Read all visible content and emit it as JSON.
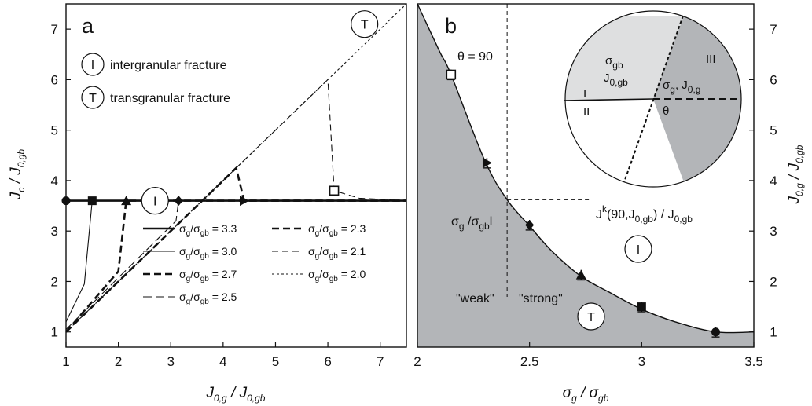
{
  "chart_data": [
    {
      "panel": "a",
      "type": "line",
      "xlabel": {
        "main": "J",
        "sub1": "0,g",
        "mid": " / J",
        "sub2": "0,gb"
      },
      "ylabel": {
        "main": "J",
        "sub1": "c",
        "mid": " / J",
        "sub2": "0,gb"
      },
      "xlim": [
        1,
        7.5
      ],
      "ylim": [
        0.7,
        7.5
      ],
      "xticks": [
        "1",
        "2",
        "3",
        "4",
        "5",
        "6",
        "7"
      ],
      "yticks": [
        "1",
        "2",
        "3",
        "4",
        "5",
        "6",
        "7"
      ],
      "grid": false,
      "regime_keys": [
        {
          "symbol": "I",
          "text": "intergranular fracture"
        },
        {
          "symbol": "T",
          "text": "transgranular fracture"
        }
      ],
      "region_labels": [
        {
          "symbol": "I",
          "x": 2.7,
          "y": 3.6
        },
        {
          "symbol": "T",
          "x": 6.7,
          "y": 7.1
        }
      ],
      "legend_position": "bottom-right",
      "series": [
        {
          "name_main": "σ",
          "name_sub1": "g",
          "name_mid": "/σ",
          "name_sub2": "gb",
          "name_tail": " = 3.3",
          "style": "solid-thick",
          "marker": "circle",
          "points": [
            [
              1.0,
              3.6
            ],
            [
              7.5,
              3.6
            ]
          ],
          "marker_at": [
            1.0,
            3.6
          ]
        },
        {
          "name_main": "σ",
          "name_sub1": "g",
          "name_mid": "/σ",
          "name_sub2": "gb",
          "name_tail": " = 3.0",
          "style": "solid-thin",
          "marker": "square",
          "points": [
            [
              1.0,
              1.2
            ],
            [
              1.35,
              1.95
            ],
            [
              1.5,
              3.6
            ],
            [
              7.5,
              3.6
            ]
          ],
          "marker_at": [
            1.5,
            3.6
          ]
        },
        {
          "name_main": "σ",
          "name_sub1": "g",
          "name_mid": "/σ",
          "name_sub2": "gb",
          "name_tail": " = 2.7",
          "style": "dash-thick",
          "marker": "triangle",
          "points": [
            [
              1.0,
              1.0
            ],
            [
              2.0,
              2.2
            ],
            [
              2.15,
              3.6
            ],
            [
              7.5,
              3.6
            ]
          ],
          "marker_at": [
            2.15,
            3.6
          ]
        },
        {
          "name_main": "σ",
          "name_sub1": "g",
          "name_mid": "/σ",
          "name_sub2": "gb",
          "name_tail": " = 2.5",
          "style": "dash-long",
          "marker": "diamond",
          "points": [
            [
              1.0,
              1.05
            ],
            [
              3.1,
              3.2
            ],
            [
              3.15,
              3.6
            ],
            [
              7.5,
              3.6
            ]
          ],
          "marker_at": [
            3.15,
            3.6
          ]
        },
        {
          "name_main": "σ",
          "name_sub1": "g",
          "name_mid": "/σ",
          "name_sub2": "gb",
          "name_tail": " = 2.3",
          "style": "dash-thick",
          "marker": "triangle-right",
          "points": [
            [
              1.0,
              1.0
            ],
            [
              4.25,
              4.25
            ],
            [
              4.4,
              3.6
            ],
            [
              7.5,
              3.6
            ]
          ],
          "marker_at": [
            4.4,
            3.6
          ]
        },
        {
          "name_main": "σ",
          "name_sub1": "g",
          "name_mid": "/σ",
          "name_sub2": "gb",
          "name_tail": " = 2.1",
          "style": "dash-med",
          "marker": "square-open",
          "points": [
            [
              1.0,
              1.0
            ],
            [
              6.0,
              6.0
            ],
            [
              6.12,
              3.8
            ],
            [
              6.6,
              3.65
            ],
            [
              7.5,
              3.6
            ]
          ],
          "marker_at": [
            6.12,
            3.8
          ]
        },
        {
          "name_main": "σ",
          "name_sub1": "g",
          "name_mid": "/σ",
          "name_sub2": "gb",
          "name_tail": " = 2.0",
          "style": "dotted",
          "marker": "none",
          "points": [
            [
              1.0,
              1.0
            ],
            [
              7.5,
              7.5
            ]
          ]
        }
      ]
    },
    {
      "panel": "b",
      "type": "scatter",
      "xlabel": {
        "main": "σ",
        "sub1": "g",
        "mid": " / σ",
        "sub2": "gb"
      },
      "ylabel": {
        "main": "J",
        "sub1": "0,g",
        "mid": " / J",
        "sub2": "0,gb"
      },
      "xlim": [
        2.0,
        3.5
      ],
      "ylim": [
        0.7,
        7.5
      ],
      "xticks": [
        "2",
        "2.5",
        "3",
        "3.5"
      ],
      "yticks": [
        "1",
        "2",
        "3",
        "4",
        "5",
        "6",
        "7"
      ],
      "grid": false,
      "boundary_curve": [
        [
          2.0,
          7.5
        ],
        [
          2.1,
          6.55
        ],
        [
          2.15,
          6.1
        ],
        [
          2.3,
          4.4
        ],
        [
          2.4,
          3.62
        ],
        [
          2.5,
          3.1
        ],
        [
          2.6,
          2.6
        ],
        [
          2.73,
          2.1
        ],
        [
          2.85,
          1.8
        ],
        [
          3.0,
          1.45
        ],
        [
          3.15,
          1.2
        ],
        [
          3.33,
          1.0
        ],
        [
          3.5,
          1.0
        ]
      ],
      "points": [
        {
          "x": 2.15,
          "y": 6.1,
          "marker": "square-open",
          "err": 0.1
        },
        {
          "x": 2.31,
          "y": 4.35,
          "marker": "triangle-right",
          "err": 0.1
        },
        {
          "x": 2.5,
          "y": 3.12,
          "marker": "diamond",
          "err": 0.1
        },
        {
          "x": 2.73,
          "y": 2.13,
          "marker": "triangle",
          "err": 0.1
        },
        {
          "x": 3.0,
          "y": 1.5,
          "marker": "square",
          "err": 0.1
        },
        {
          "x": 3.33,
          "y": 1.0,
          "marker": "circle",
          "err": 0.1
        }
      ],
      "annotations": {
        "theta90": "θ = 90",
        "ratio": {
          "main": "σ",
          "sub1": "g",
          "mid": " /σ",
          "sub2": "gb",
          "tail": "l"
        },
        "jk": {
          "main": "J",
          "sup": "k",
          "mid": "(90,J",
          "sub1": "0,gb",
          "mid2": ") / J",
          "sub2": "0,gb"
        },
        "weak": "\"weak\"",
        "strong": "\"strong\"",
        "region_I": "I",
        "region_T": "T",
        "critical_x": 2.4,
        "critical_y": 3.62
      },
      "inset": {
        "region_I": "I",
        "region_II": "II",
        "region_III": "III",
        "theta": "θ",
        "gb_label_1": {
          "main": "σ",
          "sub": "gb"
        },
        "gb_label_2": {
          "main": "J",
          "sub": "0,gb"
        },
        "g_label": {
          "main": "σ",
          "sub1": "g",
          "mid": ", J",
          "sub2": "0,g"
        }
      }
    }
  ],
  "panel_letters": {
    "a": "a",
    "b": "b"
  },
  "colors": {
    "fill": "#b3b5b8",
    "inset_light": "#dedfe0",
    "ink": "#111111"
  }
}
